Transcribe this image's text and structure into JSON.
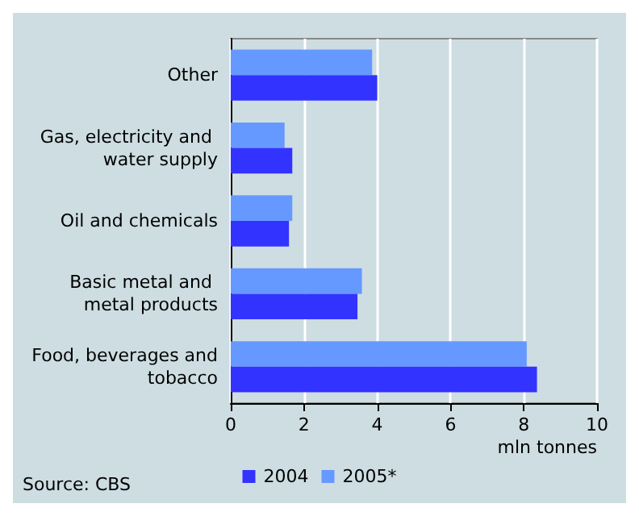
{
  "chart_data": {
    "type": "bar",
    "orientation": "horizontal",
    "categories": [
      "Other",
      "Gas, electricity and water supply",
      "Oil and chemicals",
      "Basic metal and metal products",
      "Food, beverages and tobacco"
    ],
    "series": [
      {
        "name": "2004",
        "color": "#3333ff",
        "values": [
          4.0,
          1.68,
          1.59,
          3.46,
          8.36
        ]
      },
      {
        "name": "2005*",
        "color": "#6699ff",
        "values": [
          3.86,
          1.47,
          1.68,
          3.58,
          8.08
        ]
      }
    ],
    "xlim": [
      0,
      10
    ],
    "xticks": [
      0,
      2,
      4,
      6,
      8,
      10
    ],
    "xlabel": "mln tonnes",
    "grid": "x",
    "legend": "bottom",
    "annotations": [
      "Source: CBS"
    ]
  }
}
